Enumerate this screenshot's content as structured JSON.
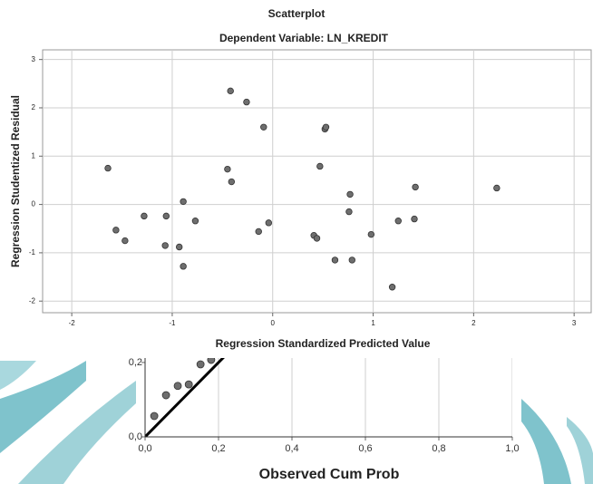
{
  "chart_data": [
    {
      "type": "scatter",
      "title": "Scatterplot",
      "subtitle": "Dependent Variable: LN_KREDIT",
      "x_label": "Regression Standardized Predicted Value",
      "y_label": "Regression Studentized Residual",
      "xlim": [
        -2.29,
        3.17
      ],
      "ylim": [
        -2.24,
        3.2
      ],
      "xticks": [
        -2,
        -1,
        0,
        1,
        2,
        3
      ],
      "yticks": [
        -2,
        -1,
        0,
        1,
        2,
        3
      ],
      "grid": true,
      "color": "#6e6e6e",
      "x": [
        -1.64,
        -1.56,
        -1.47,
        -1.28,
        -1.06,
        -1.07,
        -0.93,
        -0.89,
        -0.89,
        -0.77,
        -0.45,
        -0.42,
        -0.41,
        -0.26,
        -0.14,
        -0.09,
        -0.04,
        0.41,
        0.44,
        0.47,
        0.52,
        0.53,
        0.62,
        0.76,
        0.77,
        0.79,
        0.98,
        1.19,
        1.25,
        1.41,
        1.42,
        2.23
      ],
      "values": [
        0.75,
        -0.53,
        -0.75,
        -0.24,
        -0.24,
        -0.85,
        -0.88,
        -1.28,
        0.06,
        -0.34,
        0.73,
        2.35,
        0.47,
        2.12,
        -0.56,
        1.6,
        -0.38,
        -0.64,
        -0.7,
        0.79,
        1.56,
        1.6,
        -1.15,
        -0.15,
        0.21,
        -1.15,
        -0.62,
        -1.71,
        -0.34,
        -0.3,
        0.36,
        0.34
      ]
    },
    {
      "type": "scatter",
      "x_label": "Observed Cum Prob",
      "xlim": [
        0,
        1
      ],
      "ylim": [
        0,
        0.212
      ],
      "xticks": [
        {
          "value": 0,
          "label": "0,0"
        },
        {
          "value": 0.2,
          "label": "0,2"
        },
        {
          "value": 0.4,
          "label": "0,4"
        },
        {
          "value": 0.6,
          "label": "0,6"
        },
        {
          "value": 0.8,
          "label": "0,8"
        },
        {
          "value": 1,
          "label": "1,0"
        }
      ],
      "yticks": [
        {
          "value": 0,
          "label": "0,0"
        },
        {
          "value": 0.2,
          "label": "0,2"
        }
      ],
      "grid": true,
      "color": "#6e6e6e",
      "x": [
        0.025,
        0.057,
        0.089,
        0.119,
        0.151,
        0.18
      ],
      "values": [
        0.056,
        0.112,
        0.137,
        0.141,
        0.195,
        0.207
      ]
    }
  ]
}
